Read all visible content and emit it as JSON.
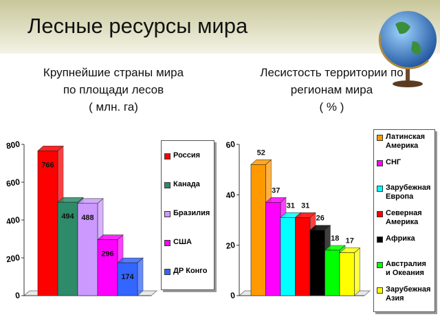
{
  "title": "Лесные ресурсы мира",
  "chart_data": [
    {
      "type": "bar",
      "title_lines": [
        "Крупнейшие страны мира",
        "по площади лесов",
        "( млн. га)"
      ],
      "categories": [
        "Россия",
        "Канада",
        "Бразилия",
        "США",
        "ДР Конго"
      ],
      "values": [
        766,
        494,
        488,
        296,
        174
      ],
      "colors": [
        "#ff0000",
        "#2e8b6a",
        "#cc99ff",
        "#ff00ff",
        "#3366ff"
      ],
      "ylim": [
        0,
        800
      ],
      "yticks": [
        0,
        200,
        400,
        600,
        800
      ]
    },
    {
      "type": "bar",
      "title_lines": [
        "Лесистость территории по",
        "регионам мира",
        "( % )"
      ],
      "categories": [
        "Латинская Америка",
        "СНГ",
        "Зарубежная Европа",
        "Северная Америка",
        "Африка",
        "Австралия и Океания",
        "Зарубежная Азия"
      ],
      "values": [
        52,
        37,
        31,
        31,
        26,
        18,
        17
      ],
      "colors": [
        "#ff9900",
        "#ff00ff",
        "#00ffff",
        "#ff0000",
        "#000000",
        "#00ff00",
        "#ffff00"
      ],
      "ylim": [
        0,
        60
      ],
      "yticks": [
        0,
        20,
        40,
        60
      ]
    }
  ]
}
